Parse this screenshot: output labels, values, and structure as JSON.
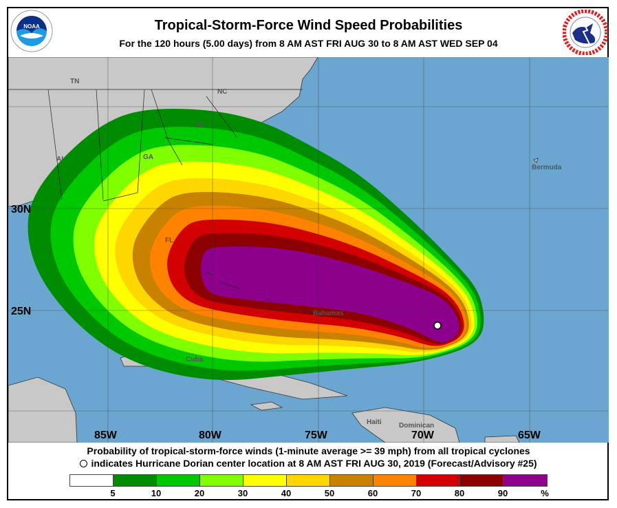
{
  "header": {
    "title": "Tropical-Storm-Force Wind Speed Probabilities",
    "subtitle": "For the 120 hours (5.00 days) from 8 AM AST FRI AUG 30 to 8 AM AST WED SEP 04",
    "left_logo": "NOAA",
    "right_logo": "NATIONAL WEATHER SERVICE"
  },
  "map": {
    "lon_labels": [
      "85W",
      "80W",
      "75W",
      "70W",
      "65W"
    ],
    "lat_labels": [
      "30N",
      "25N"
    ],
    "place_labels": {
      "tn": "TN",
      "nc": "NC",
      "sc": "SC",
      "ga": "GA",
      "al": "AL",
      "fl": "FL",
      "bermuda": "Bermuda",
      "bahamas": "Bahamas",
      "cuba": "Cuba",
      "haiti": "Haiti",
      "dominican": "Dominican"
    },
    "storm_marker": "hurricane-center-circle"
  },
  "footer": {
    "line1": "Probability of tropical-storm-force winds (1-minute average >= 39 mph) from all tropical cyclones",
    "line2": "indicates Hurricane Dorian center location at 8 AM AST FRI AUG 30, 2019 (Forecast/Advisory #25)"
  },
  "legend": {
    "colors": [
      "#ffffff",
      "#008c00",
      "#00c800",
      "#80ff00",
      "#ffff00",
      "#ffd700",
      "#c88200",
      "#ff8200",
      "#d20000",
      "#8c0000",
      "#8c008c"
    ],
    "labels": [
      "5",
      "10",
      "20",
      "30",
      "40",
      "50",
      "60",
      "70",
      "80",
      "90",
      "%"
    ]
  },
  "colors": {
    "ocean": "#6aa6cf",
    "land": "#c8c8c8"
  }
}
